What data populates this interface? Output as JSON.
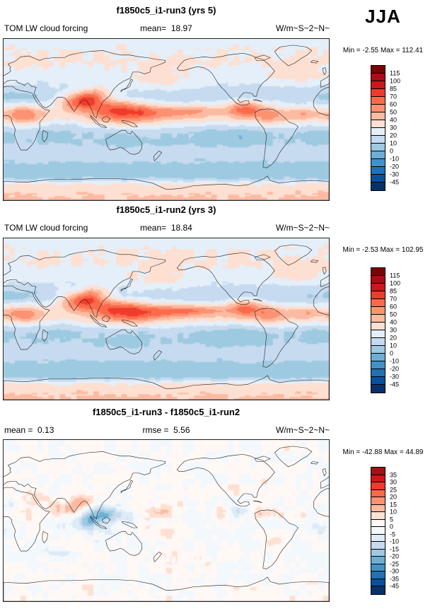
{
  "season": "JJA",
  "chart_data": [
    {
      "type": "heatmap",
      "title": "f1850c5_i1-run3 (yrs 5)",
      "var_label": "TOM LW cloud forcing",
      "stats": {
        "mean": "mean=  18.97",
        "units": "W/m~S~2~N~",
        "minmax": "Min = -2.55 Max = 112.41"
      },
      "projection": "cylindrical-equidistant",
      "lon_range": [
        0,
        360
      ],
      "lat_range": [
        -90,
        90
      ],
      "colorbar": {
        "labels_top_to_bottom": [
          "115",
          "100",
          "85",
          "70",
          "60",
          "50",
          "40",
          "30",
          "20",
          "10",
          "0",
          "-10",
          "-20",
          "-30",
          "-45"
        ],
        "levels_ascending": [
          -45,
          -30,
          -20,
          -10,
          0,
          10,
          20,
          30,
          40,
          50,
          60,
          70,
          85,
          100,
          115
        ],
        "colors_top_to_bottom": [
          "#7f0000",
          "#a50f15",
          "#cb181d",
          "#ef3b2c",
          "#fb6a4a",
          "#fc9272",
          "#fcbba1",
          "#fee0d2",
          "#e4eff9",
          "#c6dbef",
          "#9ecae1",
          "#6baed6",
          "#4292c6",
          "#2171b5",
          "#08519c",
          "#08306b"
        ]
      },
      "field": {
        "zonal_lats": [
          90,
          75,
          65,
          55,
          45,
          35,
          25,
          15,
          8,
          0,
          -8,
          -15,
          -25,
          -35,
          -45,
          -55,
          -65,
          -72,
          -80,
          -90
        ],
        "zonal_vals": [
          26,
          30,
          31,
          28,
          24,
          16,
          12,
          22,
          30,
          32,
          22,
          12,
          10,
          16,
          12,
          4,
          8,
          30,
          38,
          42
        ],
        "blobs": [
          [
            22,
            6,
            16,
            7,
            28
          ],
          [
            80,
            20,
            14,
            8,
            40
          ],
          [
            96,
            22,
            10,
            6,
            28
          ],
          [
            118,
            12,
            18,
            8,
            30
          ],
          [
            145,
            8,
            22,
            9,
            28
          ],
          [
            180,
            8,
            28,
            5,
            16
          ],
          [
            215,
            10,
            22,
            5,
            18
          ],
          [
            268,
            12,
            14,
            7,
            38
          ],
          [
            295,
            5,
            12,
            7,
            20
          ],
          [
            330,
            7,
            15,
            5,
            20
          ],
          [
            105,
            30,
            12,
            6,
            20
          ],
          [
            170,
            42,
            30,
            8,
            10
          ],
          [
            325,
            48,
            22,
            8,
            8
          ],
          [
            250,
            -18,
            28,
            9,
            -10
          ],
          [
            348,
            -15,
            14,
            7,
            -7
          ],
          [
            12,
            25,
            18,
            6,
            -7
          ],
          [
            132,
            -25,
            16,
            8,
            -5
          ],
          [
            60,
            -10,
            20,
            8,
            -6
          ]
        ],
        "noise": 2.5,
        "seed": 7
      }
    },
    {
      "type": "heatmap",
      "title": "f1850c5_i1-run2 (yrs 3)",
      "var_label": "TOM LW cloud forcing",
      "stats": {
        "mean": "mean=  18.84",
        "units": "W/m~S~2~N~",
        "minmax": "Min = -2.53 Max = 102.95"
      },
      "projection": "cylindrical-equidistant",
      "lon_range": [
        0,
        360
      ],
      "lat_range": [
        -90,
        90
      ],
      "colorbar": {
        "labels_top_to_bottom": [
          "115",
          "100",
          "85",
          "70",
          "60",
          "50",
          "40",
          "30",
          "20",
          "10",
          "0",
          "-10",
          "-20",
          "-30",
          "-45"
        ],
        "levels_ascending": [
          -45,
          -30,
          -20,
          -10,
          0,
          10,
          20,
          30,
          40,
          50,
          60,
          70,
          85,
          100,
          115
        ],
        "colors_top_to_bottom": [
          "#7f0000",
          "#a50f15",
          "#cb181d",
          "#ef3b2c",
          "#fb6a4a",
          "#fc9272",
          "#fcbba1",
          "#fee0d2",
          "#e4eff9",
          "#c6dbef",
          "#9ecae1",
          "#6baed6",
          "#4292c6",
          "#2171b5",
          "#08519c",
          "#08306b"
        ]
      },
      "field": {
        "zonal_lats": [
          90,
          75,
          65,
          55,
          45,
          35,
          25,
          15,
          8,
          0,
          -8,
          -15,
          -25,
          -35,
          -45,
          -55,
          -65,
          -72,
          -80,
          -90
        ],
        "zonal_vals": [
          26,
          30,
          31,
          28,
          24,
          16,
          12,
          22,
          30,
          32,
          22,
          12,
          10,
          16,
          12,
          4,
          8,
          30,
          38,
          42
        ],
        "blobs": [
          [
            22,
            6,
            16,
            7,
            27
          ],
          [
            80,
            20,
            14,
            8,
            37
          ],
          [
            96,
            22,
            10,
            6,
            27
          ],
          [
            118,
            12,
            18,
            8,
            29
          ],
          [
            145,
            8,
            22,
            9,
            30
          ],
          [
            180,
            8,
            28,
            5,
            18
          ],
          [
            215,
            10,
            26,
            5,
            24
          ],
          [
            268,
            12,
            14,
            7,
            36
          ],
          [
            295,
            5,
            12,
            7,
            20
          ],
          [
            330,
            7,
            15,
            5,
            20
          ],
          [
            105,
            30,
            12,
            6,
            19
          ],
          [
            170,
            42,
            30,
            8,
            10
          ],
          [
            325,
            48,
            22,
            8,
            8
          ],
          [
            250,
            -18,
            28,
            9,
            -10
          ],
          [
            348,
            -15,
            14,
            7,
            -7
          ],
          [
            12,
            25,
            18,
            6,
            -7
          ],
          [
            132,
            -25,
            16,
            8,
            -5
          ],
          [
            60,
            -10,
            20,
            8,
            -6
          ]
        ],
        "noise": 2.5,
        "seed": 13
      }
    },
    {
      "type": "heatmap",
      "title": "f1850c5_i1-run3 - f1850c5_i1-run2",
      "stats": {
        "mean": "mean =  0.13",
        "rmse": "rmse =  5.56",
        "units": "W/m~S~2~N~",
        "minmax": "Min = -42.88 Max = 44.89"
      },
      "projection": "cylindrical-equidistant",
      "lon_range": [
        0,
        360
      ],
      "lat_range": [
        -90,
        90
      ],
      "colorbar": {
        "labels_top_to_bottom": [
          "35",
          "30",
          "25",
          "20",
          "15",
          "10",
          "5",
          "0",
          "-5",
          "-10",
          "-15",
          "-20",
          "-25",
          "-30",
          "-35",
          "-45"
        ],
        "levels_ascending": [
          -45,
          -35,
          -30,
          -25,
          -20,
          -15,
          -10,
          -5,
          0,
          5,
          10,
          15,
          20,
          25,
          30,
          35
        ],
        "colors_top_to_bottom": [
          "#a50f15",
          "#cb181d",
          "#ef3b2c",
          "#fb6a4a",
          "#fc9272",
          "#fcbba1",
          "#fee0d2",
          "#fff8f5",
          "#f3f8fd",
          "#deebf7",
          "#c6dbef",
          "#9ecae1",
          "#6baed6",
          "#4292c6",
          "#2171b5",
          "#08519c",
          "#08306b"
        ]
      },
      "field": {
        "zonal_lats": [
          90,
          60,
          30,
          10,
          0,
          -20,
          -45,
          -65,
          -75,
          -90
        ],
        "zonal_vals": [
          0.5,
          0.5,
          1,
          0,
          -0.5,
          0,
          0.5,
          0,
          1.5,
          2
        ],
        "blobs": [
          [
            70,
            12,
            12,
            6,
            14
          ],
          [
            88,
            22,
            8,
            5,
            10
          ],
          [
            97,
            0,
            14,
            8,
            -18
          ],
          [
            115,
            8,
            12,
            6,
            -13
          ],
          [
            140,
            5,
            12,
            6,
            -8
          ],
          [
            162,
            8,
            14,
            5,
            8
          ],
          [
            185,
            10,
            16,
            5,
            6
          ],
          [
            210,
            8,
            14,
            5,
            -6
          ],
          [
            240,
            6,
            12,
            5,
            6
          ],
          [
            265,
            10,
            10,
            5,
            -9
          ],
          [
            284,
            8,
            10,
            5,
            9
          ],
          [
            20,
            8,
            12,
            6,
            8
          ],
          [
            2,
            15,
            10,
            5,
            -6
          ],
          [
            320,
            5,
            10,
            5,
            6
          ],
          [
            345,
            -10,
            10,
            6,
            -5
          ],
          [
            180,
            -12,
            14,
            6,
            6
          ],
          [
            120,
            -20,
            12,
            6,
            -5
          ],
          [
            300,
            -22,
            10,
            6,
            5
          ],
          [
            60,
            -35,
            14,
            6,
            -5
          ],
          [
            205,
            -42,
            16,
            6,
            4
          ],
          [
            260,
            -50,
            14,
            5,
            -4
          ],
          [
            35,
            25,
            10,
            5,
            8
          ]
        ],
        "noise": 4.2,
        "seed": 42
      }
    }
  ]
}
